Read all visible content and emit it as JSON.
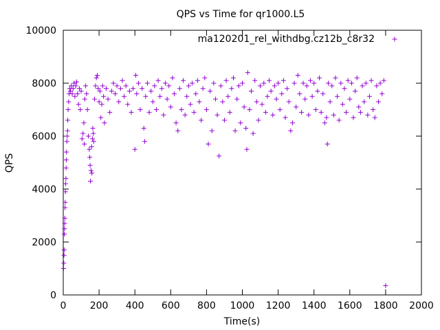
{
  "chart_data": {
    "type": "scatter",
    "title": "QPS vs Time for qr1000.L5",
    "xlabel": "Time(s)",
    "ylabel": "QPS",
    "xlim": [
      0,
      2000
    ],
    "ylim": [
      0,
      10000
    ],
    "xticks": [
      0,
      200,
      400,
      600,
      800,
      1000,
      1200,
      1400,
      1600,
      1800,
      2000
    ],
    "yticks": [
      0,
      2000,
      4000,
      6000,
      8000,
      10000
    ],
    "grid": false,
    "legend_position": "top-right",
    "marker": "plus",
    "series": [
      {
        "name": "ma120201_rel_withdbg.cz12b_c8r32",
        "color": "#9400d3",
        "points": [
          [
            2,
            1000
          ],
          [
            3,
            1200
          ],
          [
            4,
            1500
          ],
          [
            5,
            1700
          ],
          [
            6,
            2300
          ],
          [
            7,
            2500
          ],
          [
            8,
            2700
          ],
          [
            9,
            2900
          ],
          [
            10,
            3300
          ],
          [
            11,
            3500
          ],
          [
            12,
            3900
          ],
          [
            13,
            4200
          ],
          [
            15,
            4400
          ],
          [
            16,
            4800
          ],
          [
            17,
            5100
          ],
          [
            18,
            5400
          ],
          [
            20,
            5800
          ],
          [
            22,
            6000
          ],
          [
            24,
            6200
          ],
          [
            25,
            6600
          ],
          [
            27,
            7000
          ],
          [
            30,
            7300
          ],
          [
            33,
            7600
          ],
          [
            36,
            7800
          ],
          [
            40,
            7700
          ],
          [
            45,
            7900
          ],
          [
            50,
            7600
          ],
          [
            55,
            7800
          ],
          [
            60,
            8000
          ],
          [
            65,
            7500
          ],
          [
            70,
            7900
          ],
          [
            75,
            8050
          ],
          [
            80,
            7600
          ],
          [
            85,
            7200
          ],
          [
            90,
            7800
          ],
          [
            95,
            7000
          ],
          [
            100,
            7700
          ],
          [
            105,
            5900
          ],
          [
            110,
            6100
          ],
          [
            115,
            6500
          ],
          [
            118,
            5700
          ],
          [
            120,
            7400
          ],
          [
            125,
            7900
          ],
          [
            130,
            7600
          ],
          [
            135,
            7000
          ],
          [
            140,
            6000
          ],
          [
            145,
            5500
          ],
          [
            148,
            5200
          ],
          [
            150,
            4900
          ],
          [
            152,
            4300
          ],
          [
            155,
            4700
          ],
          [
            158,
            5600
          ],
          [
            160,
            4600
          ],
          [
            163,
            5900
          ],
          [
            165,
            6300
          ],
          [
            168,
            6100
          ],
          [
            170,
            5800
          ],
          [
            175,
            7400
          ],
          [
            180,
            7900
          ],
          [
            185,
            8200
          ],
          [
            190,
            8300
          ],
          [
            195,
            7800
          ],
          [
            200,
            7300
          ],
          [
            205,
            7700
          ],
          [
            210,
            6700
          ],
          [
            215,
            7200
          ],
          [
            220,
            7900
          ],
          [
            225,
            7500
          ],
          [
            230,
            6500
          ],
          [
            240,
            7800
          ],
          [
            250,
            7400
          ],
          [
            260,
            6900
          ],
          [
            270,
            7700
          ],
          [
            280,
            8000
          ],
          [
            290,
            7600
          ],
          [
            300,
            7900
          ],
          [
            310,
            7300
          ],
          [
            320,
            7800
          ],
          [
            330,
            8100
          ],
          [
            340,
            7500
          ],
          [
            350,
            7900
          ],
          [
            360,
            7200
          ],
          [
            370,
            7700
          ],
          [
            380,
            6900
          ],
          [
            390,
            7800
          ],
          [
            400,
            5500
          ],
          [
            405,
            8300
          ],
          [
            410,
            7600
          ],
          [
            420,
            8000
          ],
          [
            430,
            7000
          ],
          [
            440,
            7800
          ],
          [
            450,
            6300
          ],
          [
            455,
            5800
          ],
          [
            460,
            7500
          ],
          [
            470,
            8000
          ],
          [
            480,
            6900
          ],
          [
            490,
            7700
          ],
          [
            500,
            7300
          ],
          [
            510,
            7900
          ],
          [
            520,
            7000
          ],
          [
            530,
            8100
          ],
          [
            540,
            7500
          ],
          [
            550,
            7800
          ],
          [
            560,
            6800
          ],
          [
            570,
            8000
          ],
          [
            580,
            7400
          ],
          [
            590,
            7900
          ],
          [
            600,
            7100
          ],
          [
            610,
            8200
          ],
          [
            620,
            7600
          ],
          [
            630,
            6500
          ],
          [
            640,
            6200
          ],
          [
            650,
            7800
          ],
          [
            660,
            7000
          ],
          [
            670,
            8100
          ],
          [
            680,
            6800
          ],
          [
            690,
            7500
          ],
          [
            700,
            7900
          ],
          [
            710,
            7200
          ],
          [
            720,
            8000
          ],
          [
            730,
            6900
          ],
          [
            740,
            7600
          ],
          [
            750,
            8100
          ],
          [
            760,
            7300
          ],
          [
            770,
            6600
          ],
          [
            780,
            7800
          ],
          [
            790,
            8200
          ],
          [
            800,
            7000
          ],
          [
            810,
            5700
          ],
          [
            820,
            7700
          ],
          [
            830,
            6200
          ],
          [
            840,
            8000
          ],
          [
            850,
            7400
          ],
          [
            860,
            6800
          ],
          [
            870,
            5250
          ],
          [
            880,
            7900
          ],
          [
            890,
            7300
          ],
          [
            900,
            6600
          ],
          [
            910,
            8100
          ],
          [
            920,
            7500
          ],
          [
            930,
            6900
          ],
          [
            940,
            7800
          ],
          [
            950,
            8200
          ],
          [
            960,
            6200
          ],
          [
            970,
            7400
          ],
          [
            980,
            7900
          ],
          [
            990,
            6500
          ],
          [
            1000,
            8000
          ],
          [
            1010,
            7100
          ],
          [
            1020,
            6300
          ],
          [
            1025,
            5500
          ],
          [
            1030,
            8400
          ],
          [
            1040,
            7000
          ],
          [
            1050,
            7700
          ],
          [
            1060,
            6100
          ],
          [
            1070,
            8100
          ],
          [
            1080,
            7300
          ],
          [
            1090,
            6600
          ],
          [
            1100,
            7900
          ],
          [
            1110,
            7200
          ],
          [
            1120,
            8000
          ],
          [
            1130,
            6900
          ],
          [
            1140,
            7500
          ],
          [
            1150,
            8100
          ],
          [
            1160,
            7700
          ],
          [
            1170,
            6800
          ],
          [
            1180,
            7900
          ],
          [
            1190,
            7400
          ],
          [
            1200,
            8000
          ],
          [
            1210,
            7000
          ],
          [
            1220,
            7600
          ],
          [
            1230,
            8100
          ],
          [
            1240,
            6700
          ],
          [
            1250,
            7800
          ],
          [
            1260,
            7300
          ],
          [
            1270,
            6200
          ],
          [
            1280,
            6500
          ],
          [
            1290,
            8000
          ],
          [
            1300,
            7100
          ],
          [
            1310,
            8300
          ],
          [
            1320,
            7600
          ],
          [
            1330,
            6900
          ],
          [
            1340,
            8000
          ],
          [
            1350,
            7400
          ],
          [
            1360,
            7900
          ],
          [
            1370,
            6800
          ],
          [
            1380,
            8100
          ],
          [
            1390,
            7500
          ],
          [
            1400,
            8000
          ],
          [
            1410,
            7000
          ],
          [
            1420,
            7700
          ],
          [
            1430,
            8200
          ],
          [
            1440,
            6900
          ],
          [
            1450,
            7600
          ],
          [
            1460,
            6500
          ],
          [
            1470,
            6700
          ],
          [
            1475,
            5700
          ],
          [
            1480,
            8000
          ],
          [
            1490,
            7300
          ],
          [
            1500,
            7900
          ],
          [
            1510,
            6800
          ],
          [
            1520,
            8200
          ],
          [
            1530,
            7500
          ],
          [
            1540,
            6600
          ],
          [
            1550,
            8000
          ],
          [
            1560,
            7200
          ],
          [
            1570,
            7800
          ],
          [
            1580,
            6900
          ],
          [
            1590,
            8100
          ],
          [
            1600,
            7400
          ],
          [
            1610,
            8000
          ],
          [
            1620,
            6700
          ],
          [
            1630,
            7700
          ],
          [
            1640,
            8200
          ],
          [
            1650,
            7100
          ],
          [
            1660,
            6900
          ],
          [
            1670,
            7900
          ],
          [
            1680,
            7300
          ],
          [
            1690,
            8000
          ],
          [
            1700,
            6800
          ],
          [
            1710,
            7500
          ],
          [
            1720,
            8100
          ],
          [
            1730,
            7000
          ],
          [
            1740,
            6700
          ],
          [
            1750,
            7900
          ],
          [
            1760,
            7300
          ],
          [
            1770,
            8000
          ],
          [
            1780,
            7600
          ],
          [
            1790,
            8100
          ],
          [
            1800,
            350
          ]
        ]
      }
    ]
  }
}
